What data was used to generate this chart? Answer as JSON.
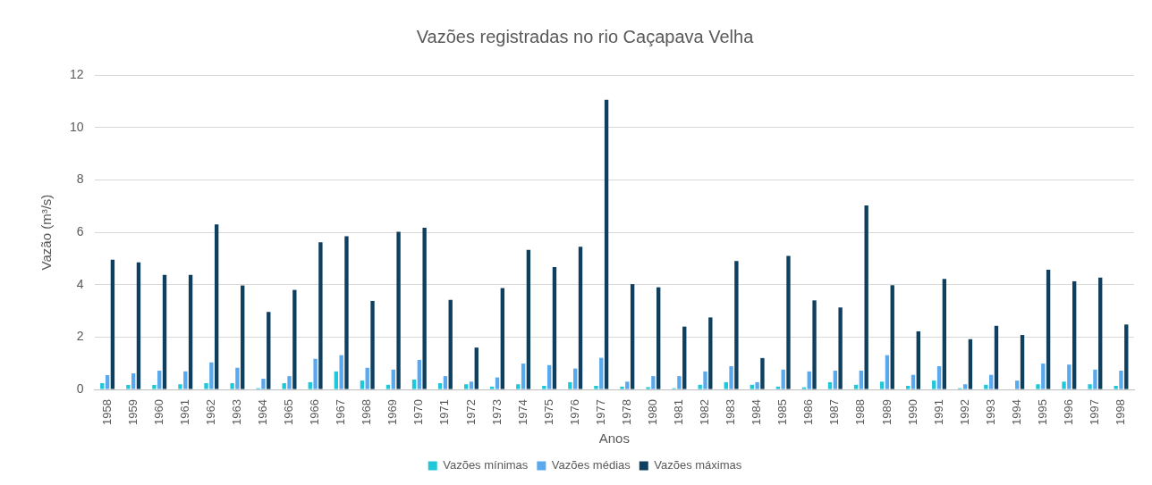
{
  "chart_data": {
    "type": "bar",
    "title": "Vazões registradas no rio Caçapava Velha",
    "xlabel": "Anos",
    "ylabel": "Vazão (m³/s)",
    "categories": [
      "1958",
      "1959",
      "1960",
      "1961",
      "1962",
      "1963",
      "1964",
      "1965",
      "1966",
      "1967",
      "1968",
      "1969",
      "1970",
      "1971",
      "1972",
      "1973",
      "1974",
      "1975",
      "1976",
      "1977",
      "1978",
      "1980",
      "1981",
      "1982",
      "1983",
      "1984",
      "1985",
      "1986",
      "1987",
      "1988",
      "1989",
      "1990",
      "1991",
      "1992",
      "1993",
      "1994",
      "1995",
      "1996",
      "1997",
      "1998"
    ],
    "series": [
      {
        "name": "Vazões mínimas",
        "color": "#1ec8d8",
        "values": [
          0.24,
          0.17,
          0.17,
          0.2,
          0.24,
          0.24,
          0.05,
          0.24,
          0.28,
          0.69,
          0.34,
          0.18,
          0.38,
          0.24,
          0.2,
          0.11,
          0.2,
          0.14,
          0.28,
          0.14,
          0.11,
          0.09,
          0.05,
          0.18,
          0.28,
          0.18,
          0.11,
          0.08,
          0.28,
          0.18,
          0.3,
          0.14,
          0.34,
          0.05,
          0.18,
          null,
          0.2,
          0.3,
          0.2,
          0.14
        ]
      },
      {
        "name": "Vazões médias",
        "color": "#5aa9ec",
        "values": [
          0.55,
          0.62,
          0.72,
          0.69,
          1.03,
          0.83,
          0.41,
          0.51,
          1.17,
          1.31,
          0.83,
          0.76,
          1.13,
          0.51,
          0.3,
          0.46,
          0.99,
          0.93,
          0.8,
          1.21,
          0.3,
          0.51,
          0.51,
          0.69,
          0.89,
          0.28,
          0.76,
          0.69,
          0.72,
          0.72,
          1.31,
          0.56,
          0.89,
          0.2,
          0.56,
          0.34,
          0.99,
          0.95,
          0.76,
          0.72
        ]
      },
      {
        "name": "Vazões máximas",
        "color": "#0f3f5e",
        "values": [
          4.95,
          4.85,
          4.37,
          4.37,
          6.3,
          3.97,
          2.96,
          3.8,
          5.62,
          5.85,
          3.38,
          6.02,
          6.17,
          3.42,
          1.6,
          3.87,
          5.33,
          4.67,
          5.45,
          11.05,
          4.02,
          3.9,
          2.4,
          2.75,
          4.9,
          1.2,
          5.1,
          3.4,
          3.13,
          7.02,
          3.98,
          2.22,
          4.22,
          1.92,
          2.43,
          2.08,
          4.57,
          4.13,
          4.27,
          2.48
        ]
      }
    ],
    "ylim": [
      0,
      12
    ],
    "yticks": [
      0,
      2,
      4,
      6,
      8,
      10,
      12
    ],
    "grid": "y",
    "legend": "bottom"
  }
}
